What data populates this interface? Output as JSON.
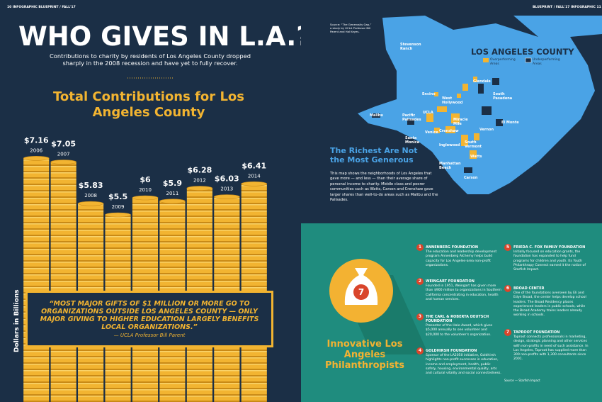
{
  "header": {
    "left_folio": "10 INFOGRAPHIC BLUEPRINT / FALL'17",
    "right_folio": "BLUEPRINT / FALL'17 INFOGRAPHIC 11",
    "title": "WHO GIVES IN L.A.?",
    "subtitle": "Contributions to charity by residents of Los Angeles County dropped sharply in the 2008 recession and have yet to fully recover."
  },
  "chart_data": {
    "type": "bar",
    "title": "Total Contributions for Los Angeles County",
    "y_label": "Dollars in Billions",
    "categories": [
      "2006",
      "2007",
      "2008",
      "2009",
      "2010",
      "2011",
      "2012",
      "2013",
      "2014"
    ],
    "values": [
      7.16,
      7.05,
      5.83,
      5.5,
      6,
      5.9,
      6.28,
      6.03,
      6.41
    ],
    "value_labels": [
      "$7.16",
      "$7.05",
      "$5.83",
      "$5.5",
      "$6",
      "$5.9",
      "$6.28",
      "$6.03",
      "$6.41"
    ],
    "color": "#f2b431",
    "ylim": [
      0,
      8
    ]
  },
  "quote": {
    "text": "“MOST MAJOR GIFTS OF $1 MILLION OR MORE GO TO ORGANIZATIONS OUTSIDE LOS ANGELES COUNTY — ONLY MAJOR GIVING TO HIGHER EDUCATION LARGELY BENEFITS LOCAL ORGANIZATIONS.”",
    "attribution": "— UCLA Professor Bill Parent"
  },
  "map": {
    "source": "Source: “The Generosity Gap,” a study by UCLA Professor Bill Parent and Hal Keyes.",
    "title": "LOS ANGELES COUNTY",
    "legend": [
      "Overperforming Areas",
      "Underperforming Areas"
    ],
    "labels": [
      "Stevenson Ranch",
      "Glendale",
      "South Pasadena",
      "Encino",
      "West Hollywood",
      "UCLA",
      "Pacific Palisades",
      "Malibu",
      "Miracle Mile",
      "Crenshaw",
      "Venice",
      "Santa Monica",
      "Vernon",
      "El Monte",
      "Inglewood",
      "South Vermont",
      "Watts",
      "Manhattan Beach",
      "Carson"
    ],
    "heading": "The Richest Are Not the Most Generous",
    "text": "This map shows the neighborhoods of Los Angeles that gave more — and less — than their average share of personal income to charity. Middle class and poorer communities such as Watts, Carson and Crenshaw gave larger shares than well-to-do areas such as Malibu and the Palisades."
  },
  "philanthropists": {
    "badge": "7",
    "title": "Innovative Los Angeles Philanthropists",
    "items": [
      {
        "number": "1",
        "name": "ANNENBERG FOUNDATION",
        "text": "The education and leadership development program Annenberg Alchemy helps build capacity for Los Angeles-area non-profit organizations."
      },
      {
        "number": "2",
        "name": "WEINGART FOUNDATION",
        "text": "Founded in 1951, Weingart has given more than $900 million to organizations in Southern California concentrating in education, health and human services."
      },
      {
        "number": "3",
        "name": "THE CARL & ROBERTA DEUTSCH FOUNDATION",
        "text": "Presenter of the Halo Award, which gives $5,000 annually to one volunteer and $20,000 to the volunteer's organization."
      },
      {
        "number": "4",
        "name": "GOLDHIRSH FOUNDATION",
        "text": "Sponsor of the LA2050 initiative, Goldhirsh highlights non-profit successes in education, income and employment, health, public safety, housing, environmental quality, arts and cultural vitality and social connectedness."
      },
      {
        "number": "5",
        "name": "FRIEDA C. FOX FAMILY FOUNDATION",
        "text": "Initially focused on education grants, the foundation has expanded to help fund programs for children and youth. Its Youth Philanthropy Connect earned it the notice of Starfish Impact."
      },
      {
        "number": "6",
        "name": "BROAD CENTER",
        "text": "One of the foundations overseen by Eli and Edye Broad, the center helps develop school leaders. The Broad Residency places experienced leaders in public schools, while the Broad Academy trains leaders already working in schools."
      },
      {
        "number": "7",
        "name": "TAPROOT FOUNDATION",
        "text": "Taproot connects professionals in marketing, design, strategic planning and other services with non-profits in need of such assistance. In Los Angeles, Taproot has supplied more than 300 non-profits with 1,300 consultants since 2001."
      }
    ],
    "source": "Source — Starfish Impact"
  }
}
